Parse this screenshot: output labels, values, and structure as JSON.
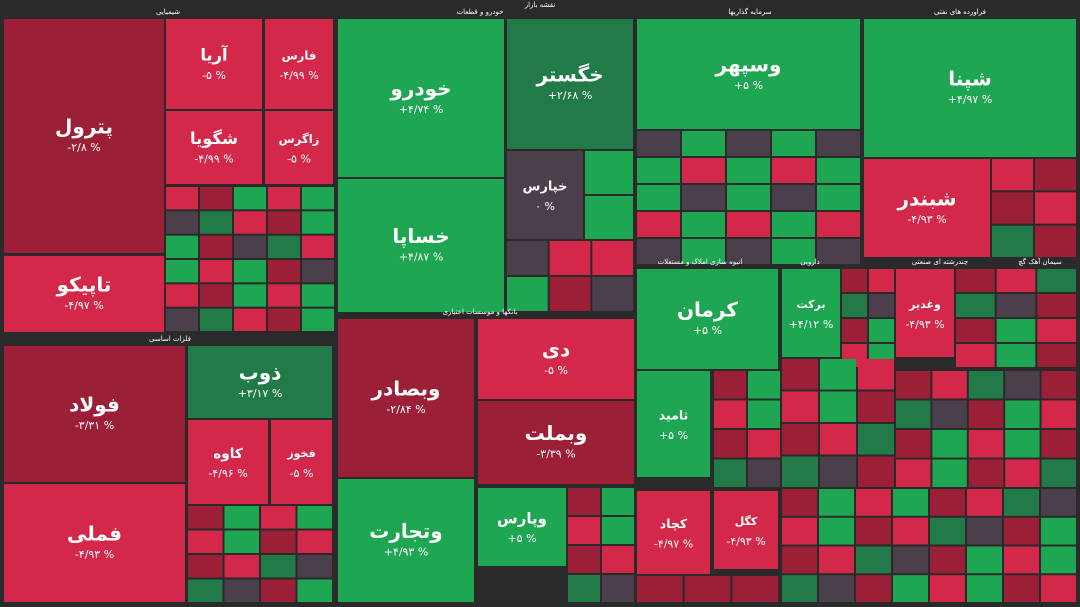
{
  "title": "نقشه بازار",
  "sectors": [
    "شیمیایی",
    "خودرو و قطعات",
    "سرمایه گذاریها",
    "فراورده های نفتی",
    "فلزات اساسی",
    "بانکها و موسسات اعتباری",
    "انبوه سازی املاک و مستغلات",
    "دارویی",
    "چندرشته ای صنعتی",
    "سیمان آهک گچ"
  ],
  "tiles": [
    {
      "name": "پترول",
      "change": "-۲/۸ %"
    },
    {
      "name": "تاپیکو",
      "change": "-۴/۹۷ %"
    },
    {
      "name": "آریا",
      "change": "-۵ %"
    },
    {
      "name": "فارس",
      "change": "-۴/۹۹ %"
    },
    {
      "name": "شگویا",
      "change": "-۴/۹۹ %"
    },
    {
      "name": "زاگرس",
      "change": "-۵ %"
    },
    {
      "name": "خودرو",
      "change": "+۴/۷۴ %"
    },
    {
      "name": "خساپا",
      "change": "+۴/۸۷ %"
    },
    {
      "name": "خگستر",
      "change": "+۲/۶۸ %"
    },
    {
      "name": "خپارس",
      "change": "۰ %"
    },
    {
      "name": "وسپهر",
      "change": "+۵ %"
    },
    {
      "name": "شپنا",
      "change": "+۴/۹۷ %"
    },
    {
      "name": "شبندر",
      "change": "-۴/۹۳ %"
    },
    {
      "name": "فولاد",
      "change": "-۳/۳۱ %"
    },
    {
      "name": "فملی",
      "change": "-۴/۹۳ %"
    },
    {
      "name": "ذوب",
      "change": "+۳/۱۷ %"
    },
    {
      "name": "کاوه",
      "change": "-۴/۹۶ %"
    },
    {
      "name": "فخوز",
      "change": "-۵ %"
    },
    {
      "name": "وبصادر",
      "change": "-۲/۸۴ %"
    },
    {
      "name": "وتجارت",
      "change": "+۴/۹۳ %"
    },
    {
      "name": "دی",
      "change": "-۵ %"
    },
    {
      "name": "وبملت",
      "change": "-۳/۳۹ %"
    },
    {
      "name": "وپارس",
      "change": "+۵ %"
    },
    {
      "name": "کرمان",
      "change": "+۵ %"
    },
    {
      "name": "ثامید",
      "change": "+۵ %"
    },
    {
      "name": "برکت",
      "change": "+۴/۱۲ %"
    },
    {
      "name": "وغدیر",
      "change": "-۴/۹۳ %"
    },
    {
      "name": "کچاد",
      "change": "-۴/۹۷ %"
    },
    {
      "name": "کگل",
      "change": "-۴/۹۳ %"
    }
  ]
}
